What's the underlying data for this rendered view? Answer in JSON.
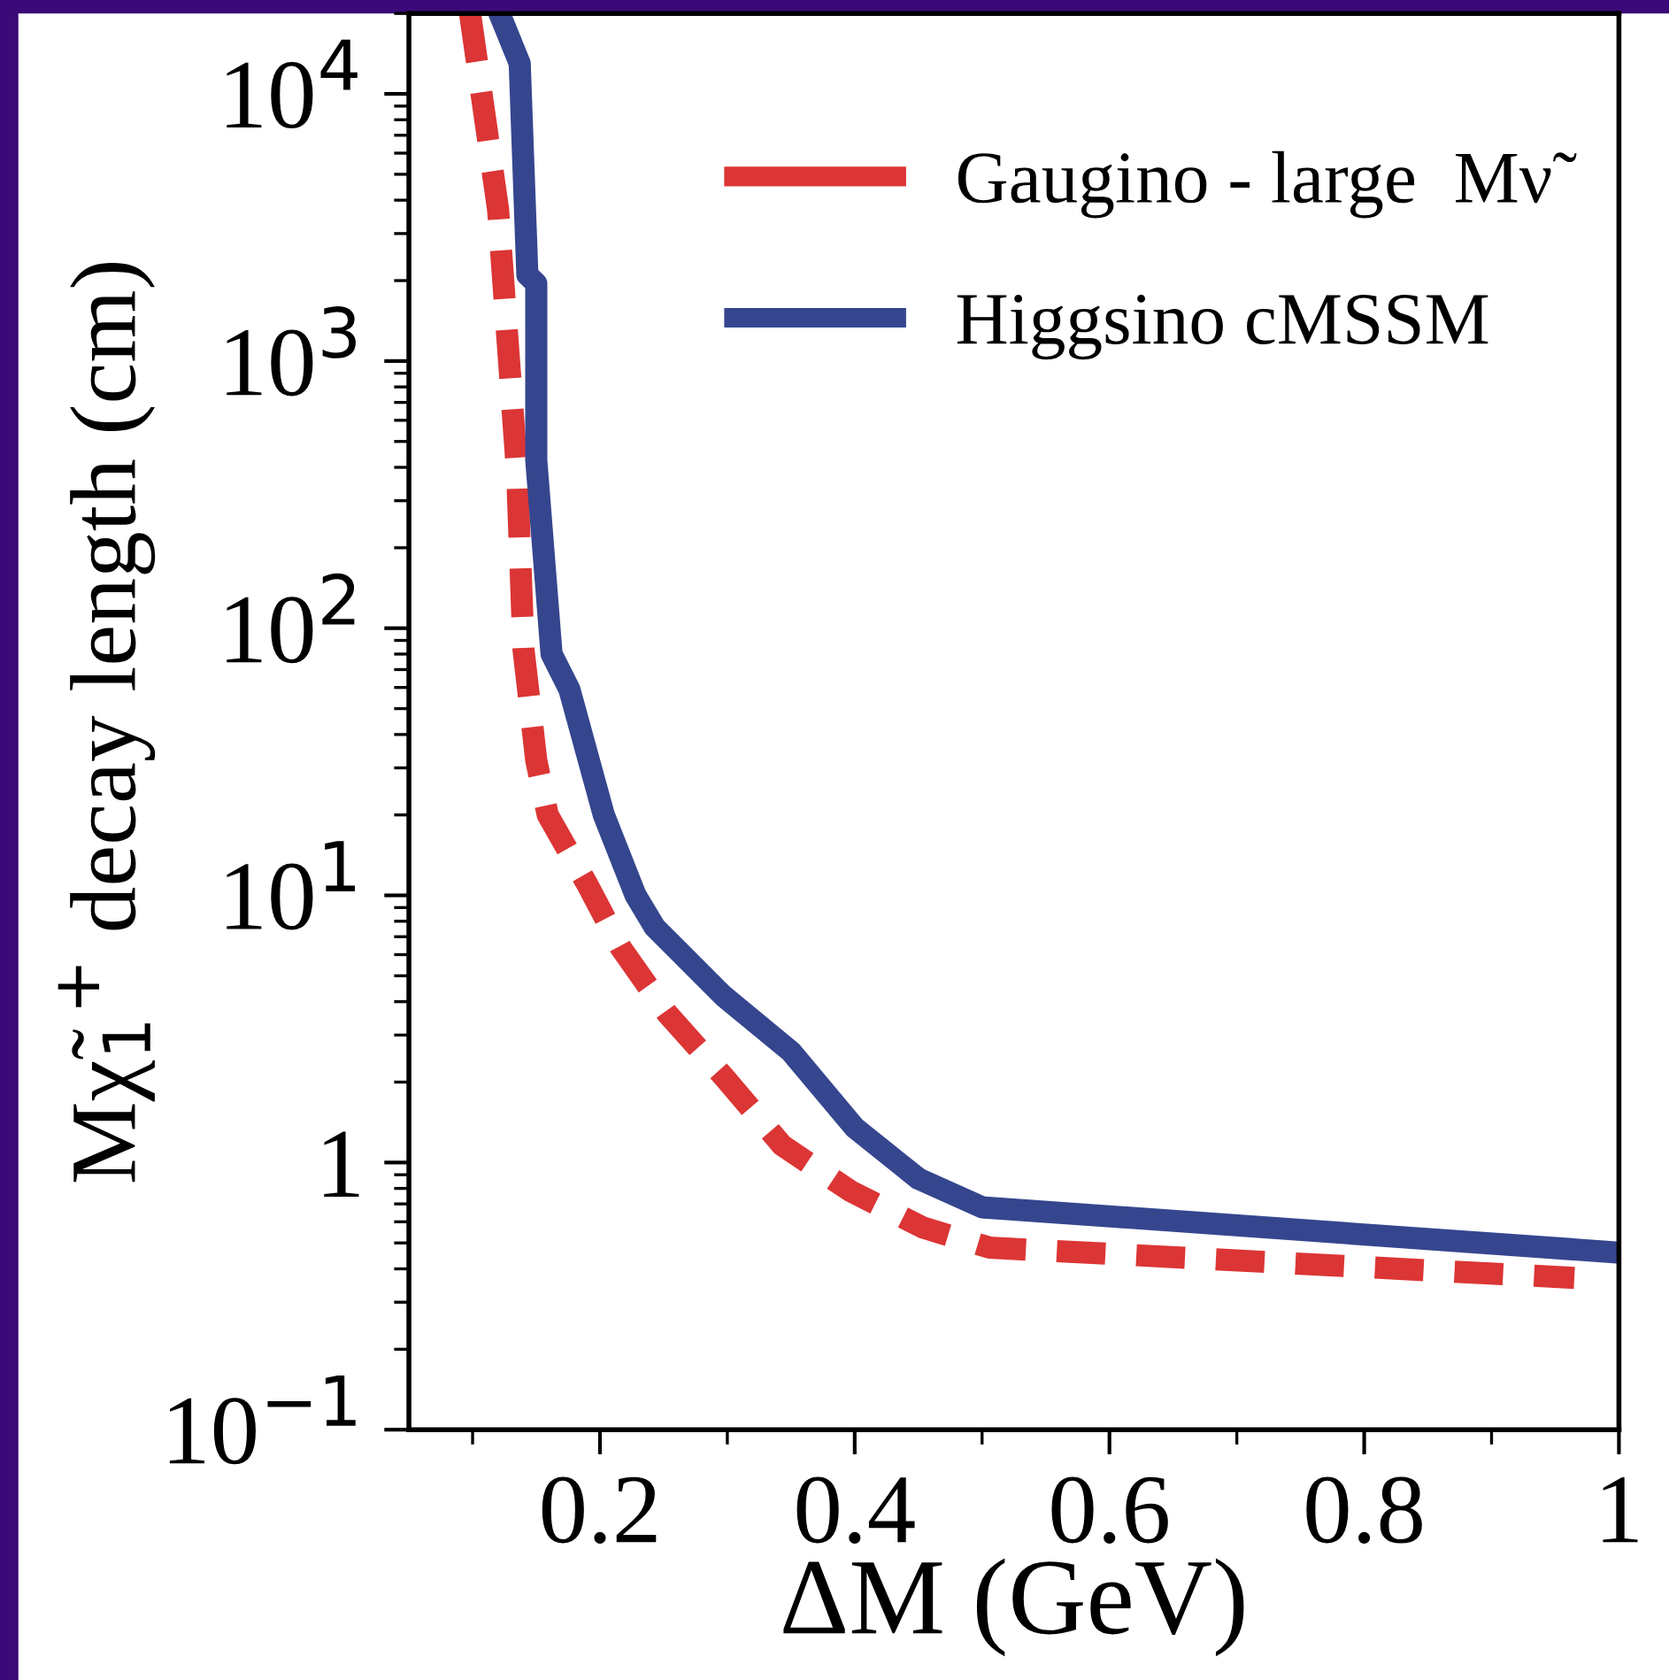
{
  "chart_data": {
    "type": "line",
    "xlabel": "ΔM (GeV)",
    "ylabel": "Mχ̃$_{1}$$^{+}$ decay length (cm)",
    "xlim": [
      0.05,
      1
    ],
    "xticks": [
      0.2,
      0.4,
      0.6,
      0.8,
      1
    ],
    "ylim": [
      0.1,
      20000
    ],
    "log": "y",
    "yticks": [
      {
        "value": 0.1,
        "label": "10$^{−1}$"
      },
      1,
      {
        "value": 10,
        "label": "10$^{1}$"
      },
      {
        "value": 100,
        "label": "10$^{2}$"
      },
      {
        "value": 1000,
        "label": "10$^{3}$"
      },
      {
        "value": 10000,
        "label": "10$^{4}$"
      }
    ],
    "grid": false,
    "legend": "top right",
    "series": [
      {
        "name": "Gaugino - large  Mν̃",
        "color": "#dc3535",
        "line_style": "dashed",
        "x": [
          0.098,
          0.12,
          0.135,
          0.14,
          0.15,
          0.159,
          0.19,
          0.216,
          0.253,
          0.297,
          0.343,
          0.397,
          0.454,
          0.506,
          0.965
        ],
        "values": [
          20000,
          3700,
          380,
          83,
          32,
          20,
          11,
          6.4,
          3.6,
          2.1,
          1.16,
          0.78,
          0.57,
          0.48,
          0.37
        ]
      },
      {
        "name": "Higgsino cMSSM",
        "color": "#35468f",
        "line_style": "solid",
        "x": [
          0.122,
          0.137,
          0.143,
          0.15,
          0.15,
          0.162,
          0.176,
          0.203,
          0.228,
          0.243,
          0.297,
          0.35,
          0.4,
          0.45,
          0.5,
          1.0
        ],
        "values": [
          19500,
          13000,
          2100,
          1950,
          425,
          80,
          59,
          20,
          10,
          7.6,
          4.2,
          2.6,
          1.35,
          0.87,
          0.68,
          0.46
        ]
      }
    ]
  }
}
